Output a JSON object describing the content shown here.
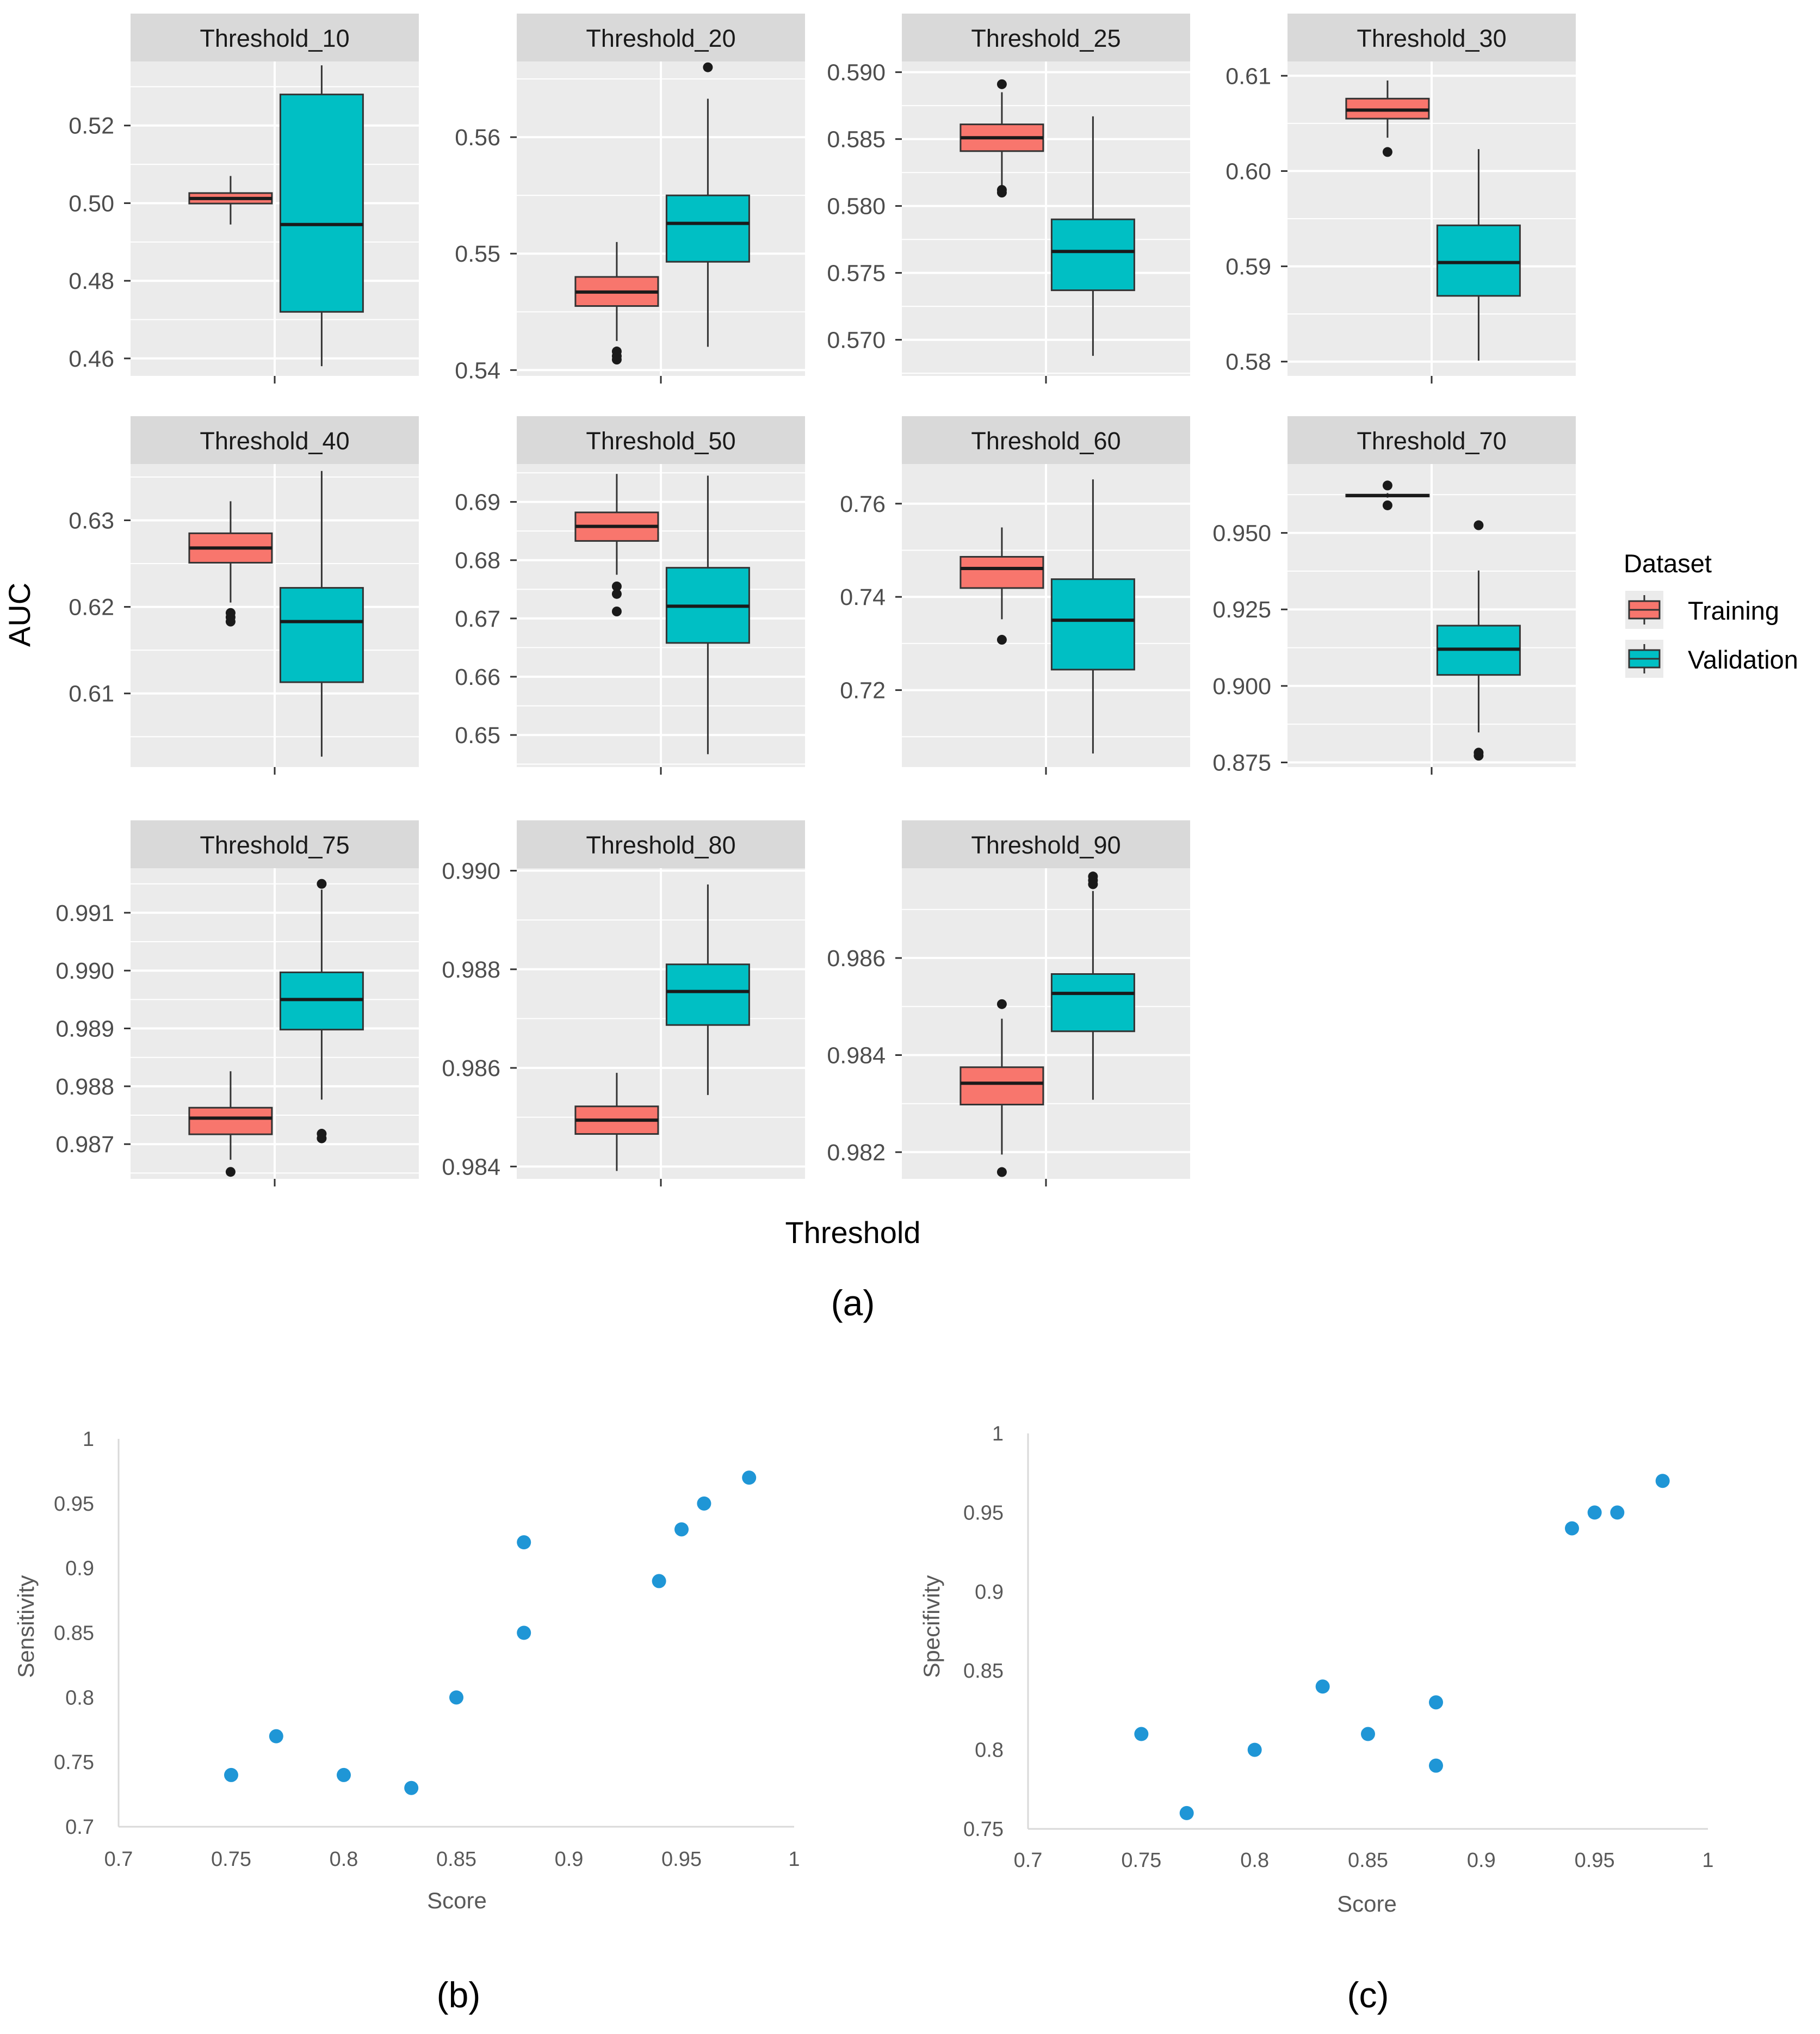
{
  "chart_data": [
    {
      "type": "boxplot",
      "panel": "(a)",
      "ylabel": "AUC",
      "xlabel": "Threshold",
      "legend": {
        "title": "Dataset",
        "entries": [
          "Training",
          "Validation"
        ],
        "placement": "right"
      },
      "colors": {
        "Training": "#F8766D",
        "Validation": "#00BFC4"
      },
      "facets": [
        {
          "title": "Threshold_10",
          "ylim": [
            0.4555,
            0.5365
          ],
          "yticks": [
            0.46,
            0.48,
            0.5,
            0.52
          ],
          "ytick_labels": [
            "0.46",
            "0.48",
            "0.50",
            "0.52"
          ],
          "boxes": [
            {
              "series": "Training",
              "min": 0.4945,
              "q1": 0.4999,
              "median": 0.5012,
              "q3": 0.5026,
              "max": 0.507,
              "outliers": []
            },
            {
              "series": "Validation",
              "min": 0.458,
              "q1": 0.472,
              "median": 0.4945,
              "q3": 0.528,
              "max": 0.5355,
              "outliers": []
            }
          ]
        },
        {
          "title": "Threshold_20",
          "ylim": [
            0.5395,
            0.5665
          ],
          "yticks": [
            0.54,
            0.55,
            0.56
          ],
          "ytick_labels": [
            "0.54",
            "0.55",
            "0.56"
          ],
          "boxes": [
            {
              "series": "Training",
              "min": 0.5425,
              "q1": 0.5455,
              "median": 0.5467,
              "q3": 0.548,
              "max": 0.551,
              "outliers": [
                0.5409,
                0.5412,
                0.5416
              ]
            },
            {
              "series": "Validation",
              "min": 0.542,
              "q1": 0.5493,
              "median": 0.5526,
              "q3": 0.555,
              "max": 0.5633,
              "outliers": [
                0.566
              ]
            }
          ]
        },
        {
          "title": "Threshold_25",
          "ylim": [
            0.5673,
            0.5908
          ],
          "yticks": [
            0.57,
            0.575,
            0.58,
            0.585,
            0.59
          ],
          "ytick_labels": [
            "0.570",
            "0.575",
            "0.580",
            "0.585",
            "0.590"
          ],
          "boxes": [
            {
              "series": "Training",
              "min": 0.5815,
              "q1": 0.5841,
              "median": 0.5851,
              "q3": 0.5861,
              "max": 0.5885,
              "outliers": [
                0.581,
                0.5812,
                0.5891
              ]
            },
            {
              "series": "Validation",
              "min": 0.5688,
              "q1": 0.5737,
              "median": 0.5766,
              "q3": 0.579,
              "max": 0.5867,
              "outliers": []
            }
          ]
        },
        {
          "title": "Threshold_30",
          "ylim": [
            0.5785,
            0.6115
          ],
          "yticks": [
            0.58,
            0.59,
            0.6,
            0.61
          ],
          "ytick_labels": [
            "0.58",
            "0.59",
            "0.60",
            "0.61"
          ],
          "boxes": [
            {
              "series": "Training",
              "min": 0.6035,
              "q1": 0.6055,
              "median": 0.6064,
              "q3": 0.6076,
              "max": 0.6095,
              "outliers": [
                0.602
              ]
            },
            {
              "series": "Validation",
              "min": 0.5801,
              "q1": 0.5869,
              "median": 0.5904,
              "q3": 0.5943,
              "max": 0.6023,
              "outliers": []
            }
          ]
        },
        {
          "title": "Threshold_40",
          "ylim": [
            0.6015,
            0.6365
          ],
          "yticks": [
            0.61,
            0.62,
            0.63
          ],
          "ytick_labels": [
            "0.61",
            "0.62",
            "0.63"
          ],
          "boxes": [
            {
              "series": "Training",
              "min": 0.6205,
              "q1": 0.6251,
              "median": 0.6268,
              "q3": 0.6285,
              "max": 0.6322,
              "outliers": [
                0.6183,
                0.6188,
                0.6193
              ]
            },
            {
              "series": "Validation",
              "min": 0.6027,
              "q1": 0.6113,
              "median": 0.6183,
              "q3": 0.6222,
              "max": 0.6357,
              "outliers": []
            }
          ]
        },
        {
          "title": "Threshold_50",
          "ylim": [
            0.6445,
            0.6965
          ],
          "yticks": [
            0.65,
            0.66,
            0.67,
            0.68,
            0.69
          ],
          "ytick_labels": [
            "0.65",
            "0.66",
            "0.67",
            "0.68",
            "0.69"
          ],
          "boxes": [
            {
              "series": "Training",
              "min": 0.6775,
              "q1": 0.6833,
              "median": 0.6858,
              "q3": 0.6882,
              "max": 0.6948,
              "outliers": [
                0.6712,
                0.6742,
                0.6755
              ]
            },
            {
              "series": "Validation",
              "min": 0.6467,
              "q1": 0.6658,
              "median": 0.6721,
              "q3": 0.6787,
              "max": 0.6945,
              "outliers": []
            }
          ]
        },
        {
          "title": "Threshold_60",
          "ylim": [
            0.7035,
            0.7685
          ],
          "yticks": [
            0.72,
            0.74,
            0.76
          ],
          "ytick_labels": [
            "0.72",
            "0.74",
            "0.76"
          ],
          "boxes": [
            {
              "series": "Training",
              "min": 0.7352,
              "q1": 0.7419,
              "median": 0.7461,
              "q3": 0.7486,
              "max": 0.7549,
              "outliers": [
                0.7308
              ]
            },
            {
              "series": "Validation",
              "min": 0.7064,
              "q1": 0.7244,
              "median": 0.735,
              "q3": 0.7438,
              "max": 0.7652,
              "outliers": []
            }
          ]
        },
        {
          "title": "Threshold_70",
          "ylim": [
            0.8735,
            0.9725
          ],
          "yticks": [
            0.875,
            0.9,
            0.925,
            0.95
          ],
          "ytick_labels": [
            "0.875",
            "0.900",
            "0.925",
            "0.950"
          ],
          "boxes": [
            {
              "series": "Training",
              "min": 0.9615,
              "q1": 0.9619,
              "median": 0.9622,
              "q3": 0.9625,
              "max": 0.963,
              "outliers": [
                0.959,
                0.9655
              ]
            },
            {
              "series": "Validation",
              "min": 0.8848,
              "q1": 0.9036,
              "median": 0.912,
              "q3": 0.9197,
              "max": 0.9377,
              "outliers": [
                0.8772,
                0.8782,
                0.9525
              ]
            }
          ]
        },
        {
          "title": "Threshold_75",
          "ylim": [
            0.9864,
            0.99177
          ],
          "yticks": [
            0.987,
            0.988,
            0.989,
            0.99,
            0.991
          ],
          "ytick_labels": [
            "0.987",
            "0.988",
            "0.989",
            "0.990",
            "0.991"
          ],
          "boxes": [
            {
              "series": "Training",
              "min": 0.98673,
              "q1": 0.98717,
              "median": 0.98745,
              "q3": 0.98763,
              "max": 0.98826,
              "outliers": [
                0.98652
              ]
            },
            {
              "series": "Validation",
              "min": 0.98777,
              "q1": 0.98898,
              "median": 0.9895,
              "q3": 0.98997,
              "max": 0.9914,
              "outliers": [
                0.9871,
                0.98718,
                0.9915
              ]
            }
          ]
        },
        {
          "title": "Threshold_80",
          "ylim": [
            0.98375,
            0.99005
          ],
          "yticks": [
            0.984,
            0.986,
            0.988,
            0.99
          ],
          "ytick_labels": [
            "0.984",
            "0.986",
            "0.988",
            "0.990"
          ],
          "boxes": [
            {
              "series": "Training",
              "min": 0.98391,
              "q1": 0.98466,
              "median": 0.98494,
              "q3": 0.98522,
              "max": 0.9859,
              "outliers": []
            },
            {
              "series": "Validation",
              "min": 0.98545,
              "q1": 0.98687,
              "median": 0.98755,
              "q3": 0.9881,
              "max": 0.98972,
              "outliers": []
            }
          ]
        },
        {
          "title": "Threshold_90",
          "ylim": [
            0.98145,
            0.98785
          ],
          "yticks": [
            0.982,
            0.984,
            0.986
          ],
          "ytick_labels": [
            "0.982",
            "0.984",
            "0.986"
          ],
          "boxes": [
            {
              "series": "Training",
              "min": 0.98195,
              "q1": 0.98298,
              "median": 0.98342,
              "q3": 0.98375,
              "max": 0.98475,
              "outliers": [
                0.98159,
                0.98505
              ]
            },
            {
              "series": "Validation",
              "min": 0.98308,
              "q1": 0.98449,
              "median": 0.98527,
              "q3": 0.98567,
              "max": 0.98738,
              "outliers": [
                0.98752,
                0.9876,
                0.98768
              ]
            }
          ]
        }
      ]
    },
    {
      "type": "scatter",
      "panel": "(b)",
      "title": "",
      "xlabel": "Score",
      "ylabel": "Sensitivity",
      "xlim": [
        0.7,
        1
      ],
      "ylim": [
        0.7,
        1
      ],
      "xticks": [
        0.7,
        0.75,
        0.8,
        0.85,
        0.9,
        0.95,
        1
      ],
      "xtick_labels": [
        "0.7",
        "0.75",
        "0.8",
        "0.85",
        "0.9",
        "0.95",
        "1"
      ],
      "yticks": [
        0.7,
        0.75,
        0.8,
        0.85,
        0.9,
        0.95,
        1
      ],
      "ytick_labels": [
        "0.7",
        "0.75",
        "0.8",
        "0.85",
        "0.9",
        "0.95",
        "1"
      ],
      "points": [
        {
          "x": 0.75,
          "y": 0.74
        },
        {
          "x": 0.77,
          "y": 0.77
        },
        {
          "x": 0.8,
          "y": 0.74
        },
        {
          "x": 0.83,
          "y": 0.73
        },
        {
          "x": 0.85,
          "y": 0.8
        },
        {
          "x": 0.88,
          "y": 0.85
        },
        {
          "x": 0.88,
          "y": 0.92
        },
        {
          "x": 0.94,
          "y": 0.89
        },
        {
          "x": 0.95,
          "y": 0.93
        },
        {
          "x": 0.96,
          "y": 0.95
        },
        {
          "x": 0.98,
          "y": 0.97
        }
      ]
    },
    {
      "type": "scatter",
      "panel": "(c)",
      "title": "",
      "xlabel": "Score",
      "ylabel": "Specifivity",
      "xlim": [
        0.7,
        1
      ],
      "ylim": [
        0.75,
        1
      ],
      "xticks": [
        0.7,
        0.75,
        0.8,
        0.85,
        0.9,
        0.95,
        1
      ],
      "xtick_labels": [
        "0.7",
        "0.75",
        "0.8",
        "0.85",
        "0.9",
        "0.95",
        "1"
      ],
      "yticks": [
        0.75,
        0.8,
        0.85,
        0.9,
        0.95,
        1
      ],
      "ytick_labels": [
        "0.75",
        "0.8",
        "0.85",
        "0.9",
        "0.95",
        "1"
      ],
      "points": [
        {
          "x": 0.75,
          "y": 0.81
        },
        {
          "x": 0.77,
          "y": 0.76
        },
        {
          "x": 0.8,
          "y": 0.8
        },
        {
          "x": 0.83,
          "y": 0.84
        },
        {
          "x": 0.85,
          "y": 0.81
        },
        {
          "x": 0.88,
          "y": 0.83
        },
        {
          "x": 0.88,
          "y": 0.79
        },
        {
          "x": 0.94,
          "y": 0.94
        },
        {
          "x": 0.95,
          "y": 0.95
        },
        {
          "x": 0.96,
          "y": 0.95
        },
        {
          "x": 0.98,
          "y": 0.97
        }
      ]
    }
  ]
}
